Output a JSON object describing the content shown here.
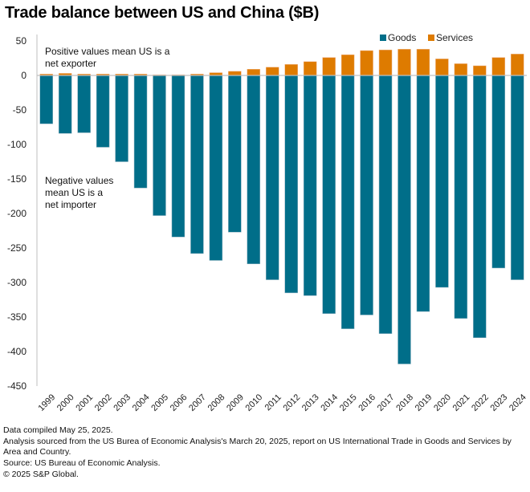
{
  "chart_data": {
    "type": "bar",
    "stacked": true,
    "title": "Trade balance between US and China ($B)",
    "xlabel": "",
    "ylabel": "",
    "ylim": [
      -450,
      50
    ],
    "yticks": [
      50,
      0,
      -50,
      -100,
      -150,
      -200,
      -250,
      -300,
      -350,
      -400,
      -450
    ],
    "grid": false,
    "legend_position": "top-right",
    "categories": [
      "1999",
      "2000",
      "2001",
      "2002",
      "2003",
      "2004",
      "2005",
      "2006",
      "2007",
      "2008",
      "2009",
      "2010",
      "2011",
      "2012",
      "2013",
      "2014",
      "2015",
      "2016",
      "2017",
      "2018",
      "2019",
      "2020",
      "2021",
      "2022",
      "2023",
      "2024"
    ],
    "series": [
      {
        "name": "Goods",
        "color": "#006e89",
        "values": [
          -70,
          -84,
          -83,
          -104,
          -125,
          -163,
          -203,
          -234,
          -258,
          -268,
          -227,
          -273,
          -296,
          -315,
          -319,
          -345,
          -367,
          -347,
          -374,
          -418,
          -342,
          -307,
          -352,
          -380,
          -279,
          -296
        ]
      },
      {
        "name": "Services",
        "color": "#de7b00",
        "values": [
          2,
          3,
          2,
          2,
          2,
          2,
          1,
          1,
          2,
          4,
          6,
          9,
          12,
          16,
          20,
          26,
          30,
          36,
          37,
          38,
          38,
          24,
          17,
          14,
          26,
          31
        ]
      }
    ],
    "annotations": [
      {
        "text_lines": [
          "Positive values mean US is a",
          "net exporter"
        ],
        "anchor": "top-left"
      },
      {
        "text_lines": [
          "Negative values",
          "mean US is a",
          "net importer"
        ],
        "anchor": "left-middle"
      }
    ]
  },
  "footnotes": {
    "compiled": "Data compiled May 25, 2025.",
    "analysis": "Analysis sourced from the US Burea of Economic Analysis's March 20, 2025, report on US International Trade in Goods and Services by Area and Country.",
    "source": "Source: US Bureau of Economic Analysis.",
    "copyright": "© 2025 S&P Global."
  }
}
